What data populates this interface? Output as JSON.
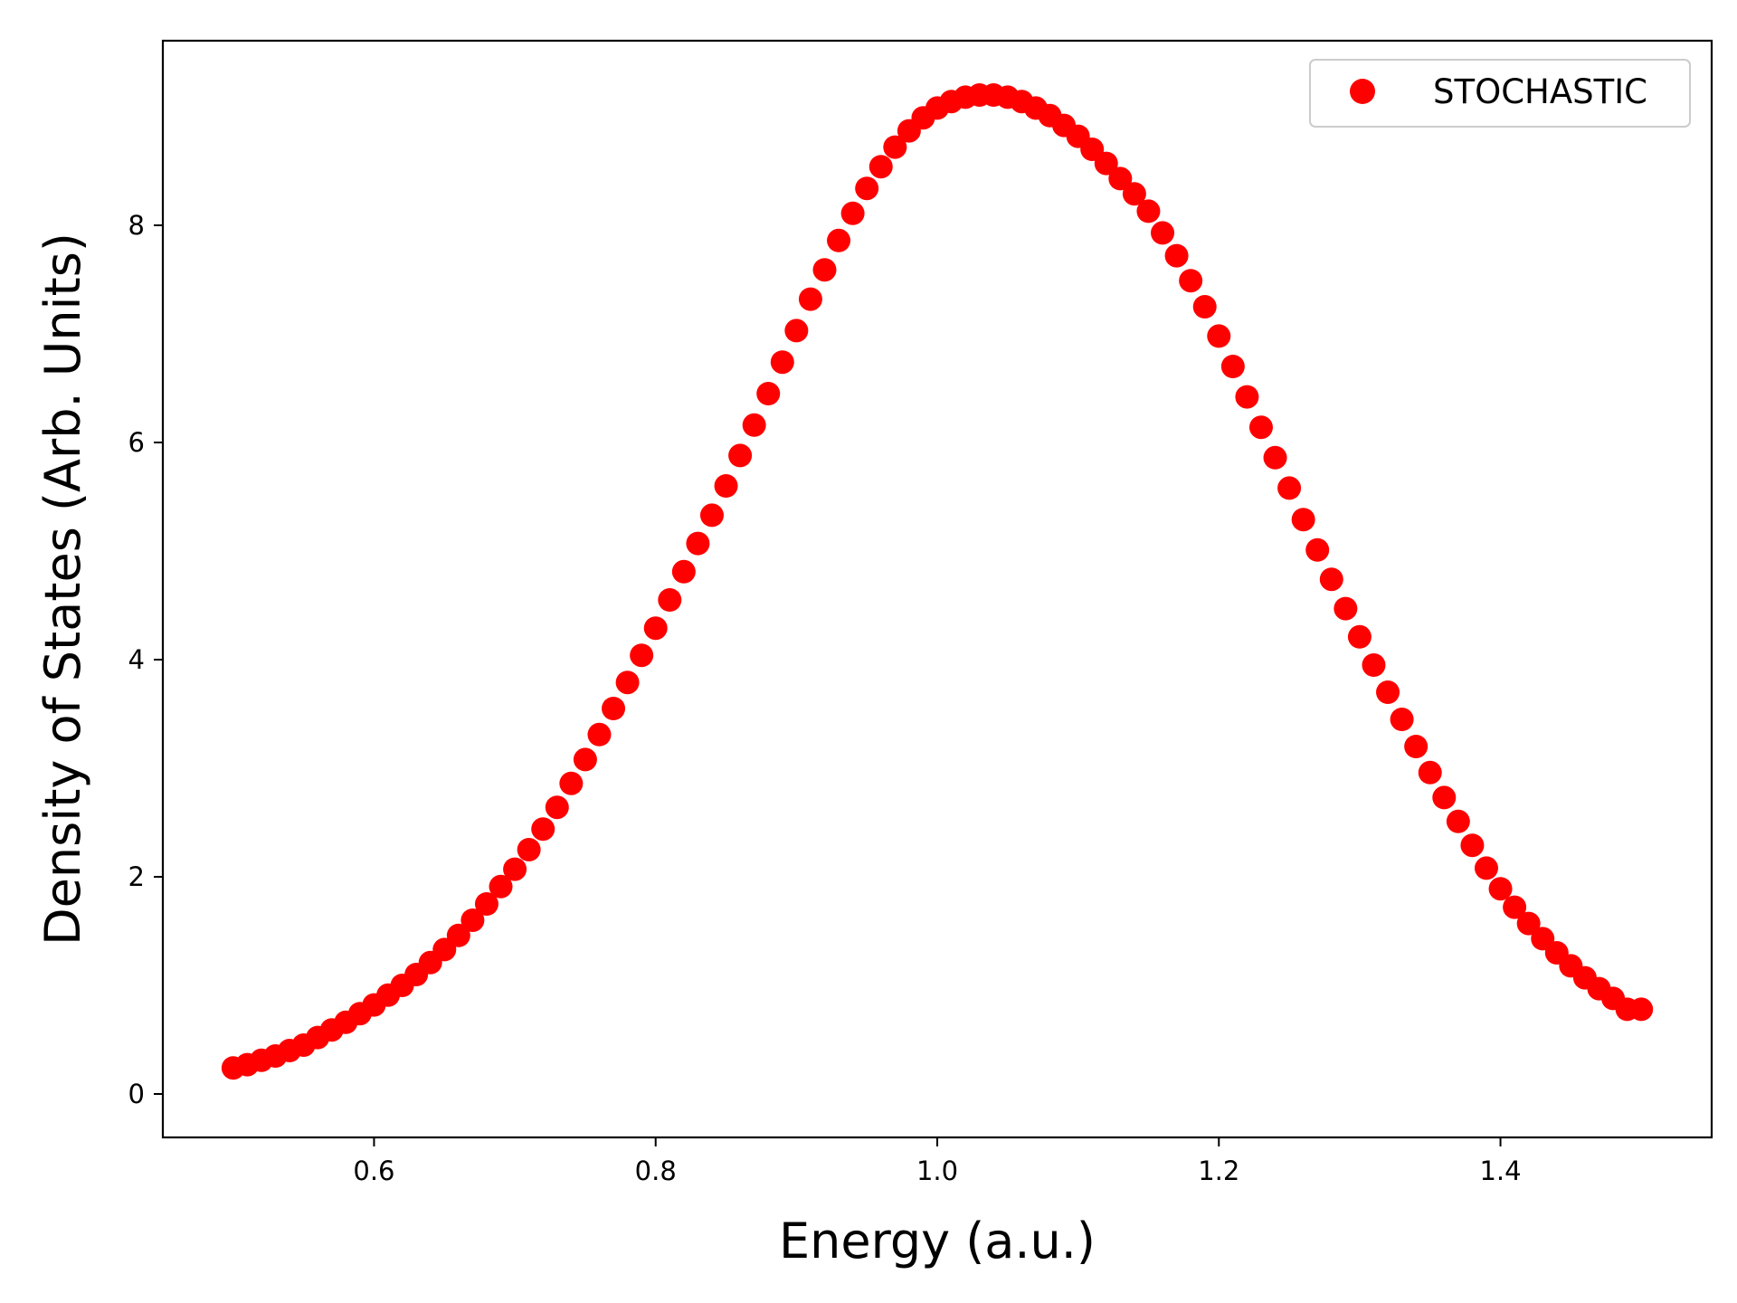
{
  "chart_data": {
    "type": "scatter",
    "title": "",
    "xlabel": "Energy (a.u.)",
    "ylabel": "Density of States (Arb. Units)",
    "xlim": [
      0.45,
      1.55
    ],
    "ylim": [
      -0.4,
      9.7
    ],
    "xticks": [
      "0.6",
      "0.8",
      "1.0",
      "1.2",
      "1.4"
    ],
    "yticks": [
      "0",
      "2",
      "4",
      "6",
      "8"
    ],
    "grid": false,
    "legend_position": "top-right",
    "series": [
      {
        "name": "STOCHASTIC",
        "color": "#ff0000",
        "marker": "circle",
        "x": [
          0.5,
          0.51,
          0.52,
          0.53,
          0.54,
          0.55,
          0.56,
          0.57,
          0.58,
          0.59,
          0.6,
          0.61,
          0.62,
          0.63,
          0.64,
          0.65,
          0.66,
          0.67,
          0.68,
          0.69,
          0.7,
          0.71,
          0.72,
          0.73,
          0.74,
          0.75,
          0.76,
          0.77,
          0.78,
          0.79,
          0.8,
          0.81,
          0.82,
          0.83,
          0.84,
          0.85,
          0.86,
          0.87,
          0.88,
          0.89,
          0.9,
          0.91,
          0.92,
          0.93,
          0.94,
          0.95,
          0.96,
          0.97,
          0.98,
          0.99,
          1.0,
          1.01,
          1.02,
          1.03,
          1.04,
          1.05,
          1.06,
          1.07,
          1.08,
          1.09,
          1.1,
          1.11,
          1.12,
          1.13,
          1.14,
          1.15,
          1.16,
          1.17,
          1.18,
          1.19,
          1.2,
          1.21,
          1.22,
          1.23,
          1.24,
          1.25,
          1.26,
          1.27,
          1.28,
          1.29,
          1.3,
          1.31,
          1.32,
          1.33,
          1.34,
          1.35,
          1.36,
          1.37,
          1.38,
          1.39,
          1.4,
          1.41,
          1.42,
          1.43,
          1.44,
          1.45,
          1.46,
          1.47,
          1.48,
          1.49,
          1.5
        ],
        "y": [
          0.24,
          0.27,
          0.31,
          0.35,
          0.4,
          0.45,
          0.52,
          0.59,
          0.66,
          0.74,
          0.82,
          0.91,
          1.0,
          1.1,
          1.21,
          1.33,
          1.46,
          1.6,
          1.75,
          1.91,
          2.07,
          2.25,
          2.44,
          2.64,
          2.86,
          3.08,
          3.31,
          3.55,
          3.79,
          4.04,
          4.29,
          4.55,
          4.81,
          5.07,
          5.33,
          5.6,
          5.88,
          6.16,
          6.45,
          6.74,
          7.03,
          7.32,
          7.59,
          7.86,
          8.11,
          8.34,
          8.54,
          8.72,
          8.87,
          8.99,
          9.08,
          9.14,
          9.18,
          9.2,
          9.2,
          9.18,
          9.14,
          9.08,
          9.01,
          8.92,
          8.82,
          8.7,
          8.57,
          8.43,
          8.29,
          8.13,
          7.93,
          7.72,
          7.49,
          7.25,
          6.98,
          6.7,
          6.42,
          6.14,
          5.86,
          5.58,
          5.29,
          5.01,
          4.74,
          4.47,
          4.21,
          3.95,
          3.7,
          3.45,
          3.2,
          2.96,
          2.73,
          2.51,
          2.29,
          2.08,
          1.89,
          1.72,
          1.57,
          1.43,
          1.3,
          1.18,
          1.07,
          0.97,
          0.88,
          0.78,
          0.78
        ]
      }
    ]
  }
}
